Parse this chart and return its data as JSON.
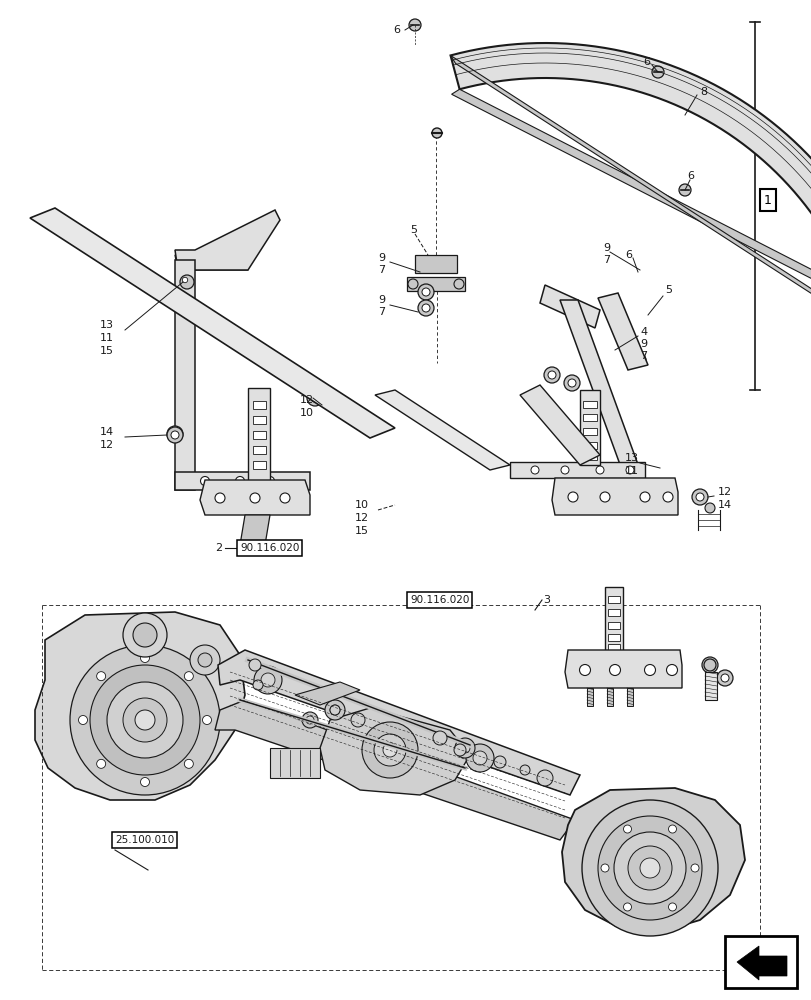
{
  "bg_color": "#ffffff",
  "line_color": "#1a1a1a",
  "label_color": "#111111",
  "box_color": "#000000",
  "fig_width": 8.12,
  "fig_height": 10.0,
  "dpi": 100,
  "label_fontsize": 8.0,
  "label_fontsize_small": 7.5,
  "lw_main": 1.3,
  "lw_thin": 0.7,
  "lw_thick": 2.0,
  "gray_fill": "#e0e0e0",
  "gray_mid": "#c8c8c8",
  "gray_dark": "#aaaaaa",
  "white": "#ffffff"
}
